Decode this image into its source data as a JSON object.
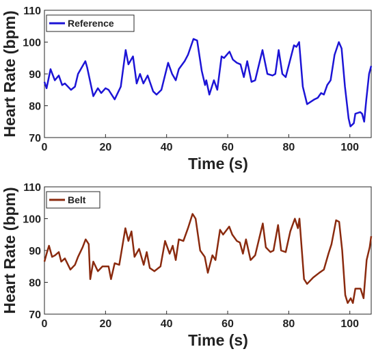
{
  "chart_data": [
    {
      "type": "line",
      "xlabel": "Time (s)",
      "ylabel": "Heart Rate (bpm)",
      "xlim": [
        0,
        107
      ],
      "ylim": [
        70,
        110
      ],
      "xticks": [
        0,
        20,
        40,
        60,
        80,
        100
      ],
      "yticks": [
        70,
        80,
        90,
        100,
        110
      ],
      "legend": "upper left",
      "x": [
        0,
        0.7,
        2,
        3.4,
        4.7,
        5.8,
        6.7,
        8.7,
        10,
        11,
        13.4,
        14,
        16,
        17.5,
        18.6,
        20,
        21,
        23,
        25,
        26.6,
        27.5,
        29,
        30.2,
        31.3,
        32.4,
        33.8,
        35.6,
        36.7,
        38.3,
        40.5,
        41.8,
        43,
        44,
        45.9,
        47,
        48.8,
        50,
        51.5,
        52.6,
        53,
        54,
        55.5,
        56.6,
        58,
        58.8,
        60.6,
        61.7,
        63,
        64.2,
        65.3,
        66.4,
        67.8,
        69,
        71.4,
        73,
        74.7,
        75.6,
        76.7,
        77.9,
        79,
        81.7,
        82.5,
        83.4,
        84.6,
        86,
        88.4,
        89.5,
        90.6,
        91.5,
        92.6,
        93.7,
        95,
        96.4,
        97.3,
        98.4,
        99.6,
        100.2,
        101.3,
        101.8,
        103.4,
        104,
        104.7,
        105.4,
        106.3,
        107
      ],
      "series": [
        {
          "name": "Reference",
          "color": "#1c14d6",
          "values": [
            87.5,
            85.5,
            91.5,
            88,
            89.5,
            86.5,
            87,
            85,
            86,
            90,
            94,
            92,
            83,
            85.5,
            84,
            85.5,
            85,
            82,
            86,
            97.5,
            93,
            95.5,
            87,
            90,
            87,
            89.5,
            84.5,
            83.5,
            85,
            93.5,
            90,
            88,
            91.5,
            94,
            96,
            101,
            100.5,
            91,
            86.5,
            88,
            83.5,
            88,
            85,
            95.5,
            95,
            97,
            94.5,
            93.5,
            93,
            89,
            94,
            87.5,
            88,
            97.5,
            90,
            89.5,
            90,
            97.5,
            90,
            89,
            99,
            98.5,
            100,
            86,
            80.5,
            82,
            82.5,
            84,
            83.5,
            86.5,
            88,
            96,
            100,
            98,
            86,
            76,
            73.5,
            74.5,
            77.5,
            78,
            77.5,
            75,
            82,
            90,
            92.5
          ]
        }
      ]
    },
    {
      "type": "line",
      "xlabel": "Time (s)",
      "ylabel": "Heart Rate (bpm)",
      "xlim": [
        0,
        107
      ],
      "ylim": [
        70,
        110
      ],
      "xticks": [
        0,
        20,
        40,
        60,
        80,
        100
      ],
      "yticks": [
        70,
        80,
        90,
        100,
        110
      ],
      "legend": "upper left",
      "x": [
        0,
        0.7,
        1.5,
        2.5,
        3.5,
        4.7,
        5.5,
        6.7,
        8.5,
        10,
        11,
        12.5,
        13.5,
        14.5,
        15,
        16,
        17.5,
        19,
        21,
        21.8,
        23,
        24.5,
        26.5,
        27.5,
        28.5,
        29.5,
        31,
        32.5,
        33.5,
        34.5,
        36,
        38,
        39.5,
        41,
        42,
        43,
        44,
        45.5,
        47,
        48.5,
        49.5,
        51,
        52.5,
        53.5,
        55,
        56,
        57.5,
        58.5,
        60.5,
        61.5,
        63,
        64,
        65,
        66,
        67.5,
        69,
        71.5,
        72.5,
        74,
        75,
        76.5,
        77.5,
        79,
        80.5,
        82,
        83,
        83.5,
        85,
        86,
        88,
        90,
        91.5,
        93,
        94,
        95.5,
        96.5,
        97.5,
        98.5,
        99.3,
        100.3,
        101,
        101.8,
        103.5,
        104.5,
        105.5,
        106.5,
        107
      ],
      "series": [
        {
          "name": "Belt",
          "color": "#8a2a0e",
          "values": [
            86.5,
            89,
            91.5,
            88,
            88.5,
            89.5,
            86.5,
            87.5,
            84,
            85.5,
            88,
            91,
            93.5,
            92,
            81,
            86.5,
            83.5,
            85,
            85,
            81,
            86,
            85.5,
            97,
            93,
            96,
            88,
            90.5,
            85.5,
            89.5,
            84.5,
            83.5,
            85,
            93,
            89,
            91.5,
            87,
            93.5,
            93,
            97,
            101.5,
            100,
            90,
            88,
            83,
            88.5,
            87,
            96.5,
            95,
            97.5,
            95,
            93,
            92.5,
            89,
            93.5,
            87,
            88.5,
            98.5,
            91,
            89.5,
            90,
            98,
            90,
            89.5,
            96,
            100,
            97,
            100,
            81,
            79.5,
            81.5,
            83,
            84,
            89,
            92,
            99.5,
            99,
            90,
            76,
            73.5,
            75,
            73.5,
            78,
            78,
            75,
            87,
            91,
            94.5
          ]
        }
      ]
    }
  ]
}
